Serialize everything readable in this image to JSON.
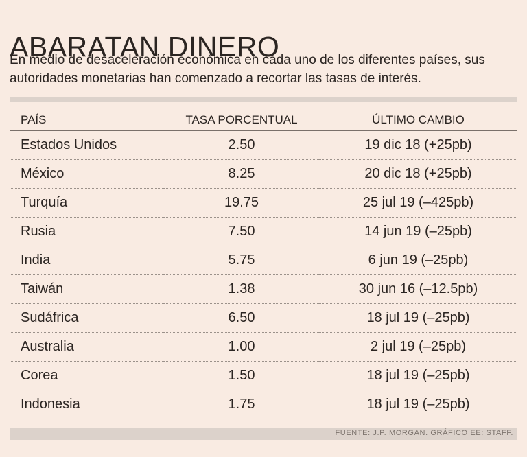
{
  "title": "ABARATAN DINERO",
  "subtitle": "En medio de desaceleración económica en cada uno de los diferentes países, sus autoridades monetarias han comenzado a recortar las tasas de interés.",
  "chart_data": {
    "type": "table",
    "columns": [
      "PAÍS",
      "TASA PORCENTUAL",
      "ÚLTIMO CAMBIO"
    ],
    "rows": [
      [
        "Estados Unidos",
        "2.50",
        "19 dic 18 (+25pb)"
      ],
      [
        "México",
        "8.25",
        "20 dic 18 (+25pb)"
      ],
      [
        "Turquía",
        "19.75",
        "25 jul 19 (–425pb)"
      ],
      [
        "Rusia",
        "7.50",
        "14 jun 19 (–25pb)"
      ],
      [
        "India",
        "5.75",
        "6 jun 19 (–25pb)"
      ],
      [
        "Taiwán",
        "1.38",
        "30 jun 16 (–12.5pb)"
      ],
      [
        "Sudáfrica",
        "6.50",
        "18 jul 19 (–25pb)"
      ],
      [
        "Australia",
        "1.00",
        "2 jul 19 (–25pb)"
      ],
      [
        "Corea",
        "1.50",
        "18 jul 19 (–25pb)"
      ],
      [
        "Indonesia",
        "1.75",
        "18 jul 19 (–25pb)"
      ]
    ]
  },
  "source": "FUENTE: J.P. MORGAN. GRÁFICO EE: STAFF.",
  "colors": {
    "background": "#f9ebe2",
    "text": "#2b2522",
    "bar": "#dcd2cb"
  }
}
